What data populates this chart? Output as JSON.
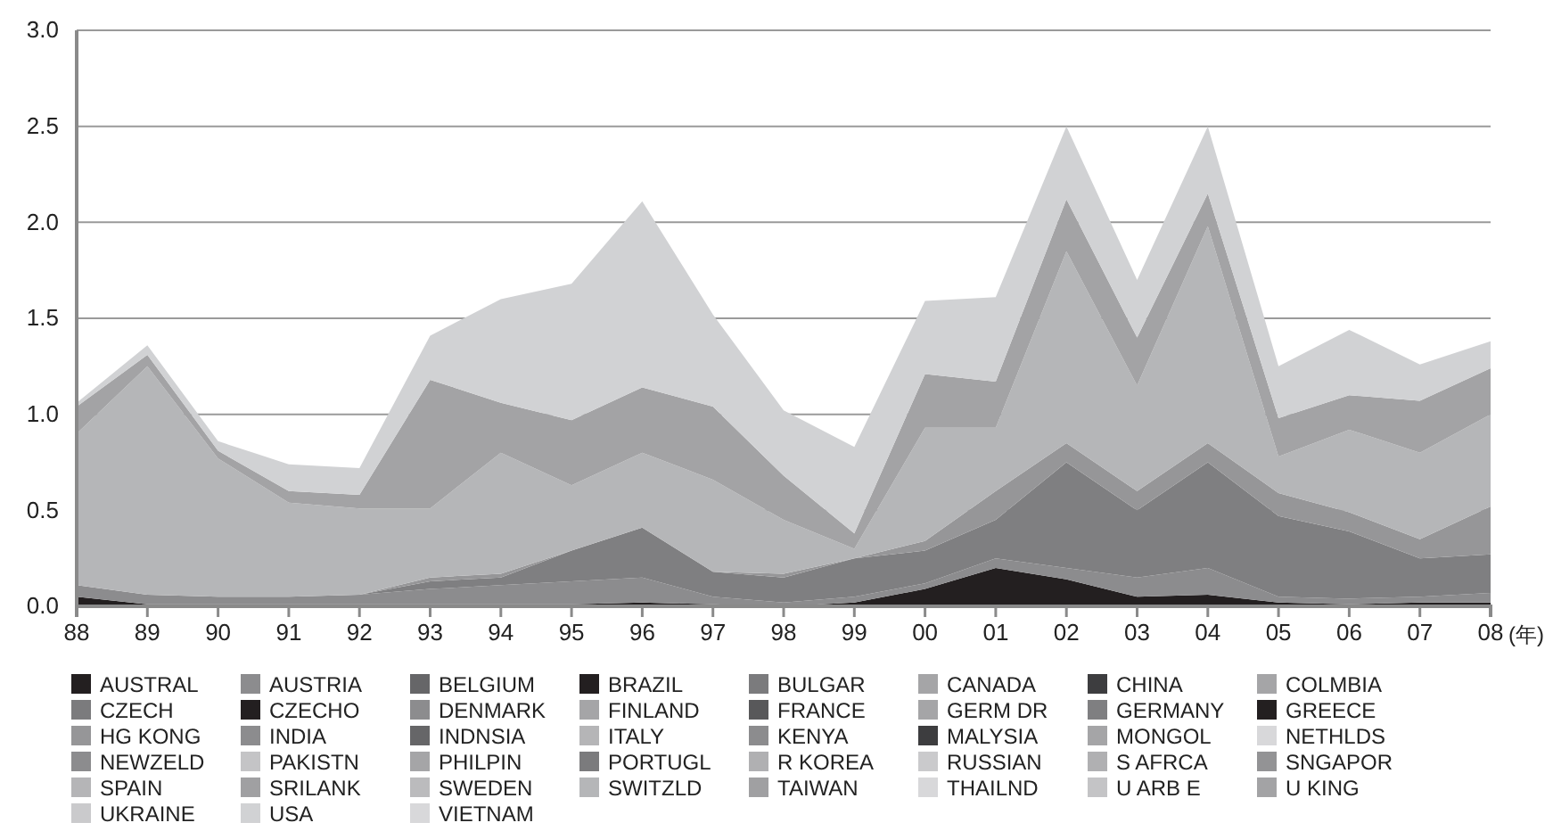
{
  "chart_data": {
    "type": "area",
    "stacked": true,
    "xlabel": "(年)",
    "categories": [
      "88",
      "89",
      "90",
      "91",
      "92",
      "93",
      "94",
      "95",
      "96",
      "97",
      "98",
      "99",
      "00",
      "01",
      "02",
      "03",
      "04",
      "05",
      "06",
      "07",
      "08"
    ],
    "ylim": [
      0,
      3
    ],
    "yticks": [
      {
        "value": 0,
        "label": "0.0"
      },
      {
        "value": 0.5,
        "label": "0.5"
      },
      {
        "value": 1,
        "label": "1.0"
      },
      {
        "value": 1.5,
        "label": "1.5"
      },
      {
        "value": 2,
        "label": "2.0"
      },
      {
        "value": 2.5,
        "label": "2.5"
      },
      {
        "value": 3,
        "label": "3.0"
      }
    ],
    "grid": "y",
    "legend": "bottom",
    "series": [
      {
        "name": "AUSTRAL",
        "color": "#231f20",
        "values": [
          0.05,
          0.01,
          0.01,
          0.01,
          0.01,
          0.01,
          0.01,
          0.01,
          0.02,
          0.01,
          0,
          0.02,
          0.09,
          0.2,
          0.14,
          0.05,
          0.06,
          0.02,
          0.01,
          0.02,
          0.02
        ]
      },
      {
        "name": "AUSTRIA",
        "color": "#8c8c8e",
        "values": [
          0.06,
          0.05,
          0.04,
          0.04,
          0.05,
          0.08,
          0.1,
          0.12,
          0.13,
          0.04,
          0.02,
          0.03,
          0.03,
          0.05,
          0.06,
          0.1,
          0.14,
          0.03,
          0.03,
          0.03,
          0.05
        ]
      },
      {
        "name": "BELGIUM",
        "color": "#666668",
        "values": [
          null,
          null,
          null,
          null,
          null,
          null,
          null,
          null,
          null,
          null,
          null,
          null,
          null,
          null,
          null,
          null,
          null,
          null,
          null,
          null,
          null
        ]
      },
      {
        "name": "BRAZIL",
        "color": "#231f20",
        "values": [
          null,
          null,
          null,
          null,
          null,
          null,
          null,
          null,
          null,
          null,
          null,
          null,
          null,
          null,
          null,
          null,
          null,
          null,
          null,
          null,
          null
        ]
      },
      {
        "name": "BULGAR",
        "color": "#7b7b7d",
        "values": [
          null,
          null,
          null,
          null,
          null,
          null,
          null,
          null,
          null,
          null,
          null,
          null,
          null,
          null,
          null,
          null,
          null,
          null,
          null,
          null,
          null
        ]
      },
      {
        "name": "CANADA",
        "color": "#a5a5a7",
        "values": [
          null,
          null,
          null,
          null,
          null,
          null,
          null,
          null,
          null,
          null,
          null,
          null,
          null,
          null,
          null,
          null,
          null,
          null,
          null,
          null,
          null
        ]
      },
      {
        "name": "CHINA",
        "color": "#3d3d3f",
        "values": [
          null,
          null,
          null,
          null,
          null,
          null,
          null,
          null,
          null,
          null,
          null,
          null,
          null,
          null,
          null,
          null,
          null,
          null,
          null,
          null,
          null
        ]
      },
      {
        "name": "COLMBIA",
        "color": "#a5a5a7",
        "values": [
          null,
          null,
          null,
          null,
          null,
          null,
          null,
          null,
          null,
          null,
          null,
          null,
          null,
          null,
          null,
          null,
          null,
          null,
          null,
          null,
          null
        ]
      },
      {
        "name": "CZECH",
        "color": "#7b7b7d",
        "values": [
          null,
          null,
          null,
          null,
          null,
          null,
          null,
          null,
          null,
          null,
          null,
          null,
          null,
          null,
          null,
          null,
          null,
          null,
          null,
          null,
          null
        ]
      },
      {
        "name": "CZECHO",
        "color": "#231f20",
        "values": [
          null,
          null,
          null,
          null,
          null,
          null,
          null,
          null,
          null,
          null,
          null,
          null,
          null,
          null,
          null,
          null,
          null,
          null,
          null,
          null,
          null
        ]
      },
      {
        "name": "DENMARK",
        "color": "#8c8c8e",
        "values": [
          null,
          null,
          null,
          null,
          null,
          null,
          null,
          null,
          null,
          null,
          null,
          null,
          null,
          null,
          null,
          null,
          null,
          null,
          null,
          null,
          null
        ]
      },
      {
        "name": "FINLAND",
        "color": "#a5a5a7",
        "values": [
          null,
          null,
          null,
          null,
          null,
          null,
          null,
          null,
          null,
          null,
          null,
          null,
          null,
          null,
          null,
          null,
          null,
          null,
          null,
          null,
          null
        ]
      },
      {
        "name": "FRANCE",
        "color": "#58585a",
        "values": [
          null,
          null,
          null,
          null,
          null,
          null,
          null,
          null,
          null,
          null,
          null,
          null,
          null,
          null,
          null,
          null,
          null,
          null,
          null,
          null,
          null
        ]
      },
      {
        "name": "GERM DR",
        "color": "#a5a5a7",
        "values": [
          null,
          null,
          null,
          null,
          null,
          null,
          null,
          null,
          null,
          null,
          null,
          null,
          null,
          null,
          null,
          null,
          null,
          null,
          null,
          null,
          null
        ]
      },
      {
        "name": "GERMANY",
        "color": "#7f7f81",
        "values": [
          0,
          0,
          0,
          0,
          0,
          0.04,
          0.04,
          0.16,
          0.26,
          0.13,
          0.13,
          0.2,
          0.17,
          0.2,
          0.55,
          0.35,
          0.55,
          0.42,
          0.35,
          0.2,
          0.2
        ]
      },
      {
        "name": "GREECE",
        "color": "#231f20",
        "values": [
          null,
          null,
          null,
          null,
          null,
          null,
          null,
          null,
          null,
          null,
          null,
          null,
          null,
          null,
          null,
          null,
          null,
          null,
          null,
          null,
          null
        ]
      },
      {
        "name": "HG KONG",
        "color": "#969698",
        "values": [
          0,
          0,
          0,
          0,
          0,
          0.02,
          0.02,
          0,
          0,
          0,
          0.02,
          0,
          0.05,
          0.15,
          0.1,
          0.1,
          0.1,
          0.12,
          0.1,
          0.1,
          0.25
        ]
      },
      {
        "name": "INDIA",
        "color": "#8c8c8e",
        "values": [
          null,
          null,
          null,
          null,
          null,
          null,
          null,
          null,
          null,
          null,
          null,
          null,
          null,
          null,
          null,
          null,
          null,
          null,
          null,
          null,
          null
        ]
      },
      {
        "name": "INDNSIA",
        "color": "#666668",
        "values": [
          null,
          null,
          null,
          null,
          null,
          null,
          null,
          null,
          null,
          null,
          null,
          null,
          null,
          null,
          null,
          null,
          null,
          null,
          null,
          null,
          null
        ]
      },
      {
        "name": "ITALY",
        "color": "#b5b5b7",
        "values": [
          null,
          null,
          null,
          null,
          null,
          null,
          null,
          null,
          null,
          null,
          null,
          null,
          null,
          null,
          null,
          null,
          null,
          null,
          null,
          null,
          null
        ]
      },
      {
        "name": "KENYA",
        "color": "#8c8c8e",
        "values": [
          null,
          null,
          null,
          null,
          null,
          null,
          null,
          null,
          null,
          null,
          null,
          null,
          null,
          null,
          null,
          null,
          null,
          null,
          null,
          null,
          null
        ]
      },
      {
        "name": "MALYSIA",
        "color": "#3d3d3f",
        "values": [
          null,
          null,
          null,
          null,
          null,
          null,
          null,
          null,
          null,
          null,
          null,
          null,
          null,
          null,
          null,
          null,
          null,
          null,
          null,
          null,
          null
        ]
      },
      {
        "name": "MONGOL",
        "color": "#a5a5a7",
        "values": [
          null,
          null,
          null,
          null,
          null,
          null,
          null,
          null,
          null,
          null,
          null,
          null,
          null,
          null,
          null,
          null,
          null,
          null,
          null,
          null,
          null
        ]
      },
      {
        "name": "NETHLDS",
        "color": "#d8d8da",
        "values": [
          null,
          null,
          null,
          null,
          null,
          null,
          null,
          null,
          null,
          null,
          null,
          null,
          null,
          null,
          null,
          null,
          null,
          null,
          null,
          null,
          null
        ]
      },
      {
        "name": "NEWZELD",
        "color": "#8c8c8e",
        "values": [
          null,
          null,
          null,
          null,
          null,
          null,
          null,
          null,
          null,
          null,
          null,
          null,
          null,
          null,
          null,
          null,
          null,
          null,
          null,
          null,
          null
        ]
      },
      {
        "name": "PAKISTN",
        "color": "#c4c4c6",
        "values": [
          null,
          null,
          null,
          null,
          null,
          null,
          null,
          null,
          null,
          null,
          null,
          null,
          null,
          null,
          null,
          null,
          null,
          null,
          null,
          null,
          null
        ]
      },
      {
        "name": "PHILPIN",
        "color": "#a5a5a7",
        "values": [
          null,
          null,
          null,
          null,
          null,
          null,
          null,
          null,
          null,
          null,
          null,
          null,
          null,
          null,
          null,
          null,
          null,
          null,
          null,
          null,
          null
        ]
      },
      {
        "name": "PORTUGL",
        "color": "#7b7b7d",
        "values": [
          null,
          null,
          null,
          null,
          null,
          null,
          null,
          null,
          null,
          null,
          null,
          null,
          null,
          null,
          null,
          null,
          null,
          null,
          null,
          null,
          null
        ]
      },
      {
        "name": "R KOREA",
        "color": "#b0b0b2",
        "values": [
          null,
          null,
          null,
          null,
          null,
          null,
          null,
          null,
          null,
          null,
          null,
          null,
          null,
          null,
          null,
          null,
          null,
          null,
          null,
          null,
          null
        ]
      },
      {
        "name": "RUSSIAN",
        "color": "#cacacc",
        "values": [
          null,
          null,
          null,
          null,
          null,
          null,
          null,
          null,
          null,
          null,
          null,
          null,
          null,
          null,
          null,
          null,
          null,
          null,
          null,
          null,
          null
        ]
      },
      {
        "name": "S AFRCA",
        "color": "#b0b0b2",
        "values": [
          null,
          null,
          null,
          null,
          null,
          null,
          null,
          null,
          null,
          null,
          null,
          null,
          null,
          null,
          null,
          null,
          null,
          null,
          null,
          null,
          null
        ]
      },
      {
        "name": "SNGAPOR",
        "color": "#939395",
        "values": [
          null,
          null,
          null,
          null,
          null,
          null,
          null,
          null,
          null,
          null,
          null,
          null,
          null,
          null,
          null,
          null,
          null,
          null,
          null,
          null,
          null
        ]
      },
      {
        "name": "SPAIN",
        "color": "#b5b5b7",
        "values": [
          null,
          null,
          null,
          null,
          null,
          null,
          null,
          null,
          null,
          null,
          null,
          null,
          null,
          null,
          null,
          null,
          null,
          null,
          null,
          null,
          null
        ]
      },
      {
        "name": "SRILANK",
        "color": "#a0a0a2",
        "values": [
          null,
          null,
          null,
          null,
          null,
          null,
          null,
          null,
          null,
          null,
          null,
          null,
          null,
          null,
          null,
          null,
          null,
          null,
          null,
          null,
          null
        ]
      },
      {
        "name": "SWEDEN",
        "color": "#bbbbbd",
        "values": [
          null,
          null,
          null,
          null,
          null,
          null,
          null,
          null,
          null,
          null,
          null,
          null,
          null,
          null,
          null,
          null,
          null,
          null,
          null,
          null,
          null
        ]
      },
      {
        "name": "SWITZLD",
        "color": "#b5b6b8",
        "values": [
          0.79,
          1.19,
          0.72,
          0.49,
          0.45,
          0.36,
          0.63,
          0.34,
          0.39,
          0.48,
          0.28,
          0.05,
          0.59,
          0.33,
          1.0,
          0.55,
          1.13,
          0.19,
          0.43,
          0.45,
          0.48
        ]
      },
      {
        "name": "TAIWAN",
        "color": "#a0a0a2",
        "values": [
          null,
          null,
          null,
          null,
          null,
          null,
          null,
          null,
          null,
          null,
          null,
          null,
          null,
          null,
          null,
          null,
          null,
          null,
          null,
          null,
          null
        ]
      },
      {
        "name": "THAILND",
        "color": "#d8d8da",
        "values": [
          null,
          null,
          null,
          null,
          null,
          null,
          null,
          null,
          null,
          null,
          null,
          null,
          null,
          null,
          null,
          null,
          null,
          null,
          null,
          null,
          null
        ]
      },
      {
        "name": "U ARB E",
        "color": "#c4c4c6",
        "values": [
          null,
          null,
          null,
          null,
          null,
          null,
          null,
          null,
          null,
          null,
          null,
          null,
          null,
          null,
          null,
          null,
          null,
          null,
          null,
          null,
          null
        ]
      },
      {
        "name": "U KING",
        "color": "#a3a3a5",
        "values": [
          0.14,
          0.06,
          0.04,
          0.06,
          0.07,
          0.67,
          0.26,
          0.34,
          0.34,
          0.38,
          0.23,
          0.08,
          0.28,
          0.24,
          0.27,
          0.25,
          0.17,
          0.2,
          0.18,
          0.27,
          0.24
        ]
      },
      {
        "name": "UKRAINE",
        "color": "#cacacc",
        "values": [
          null,
          null,
          null,
          null,
          null,
          null,
          null,
          null,
          null,
          null,
          null,
          null,
          null,
          null,
          null,
          null,
          null,
          null,
          null,
          null,
          null
        ]
      },
      {
        "name": "USA",
        "color": "#d1d2d4",
        "values": [
          0.02,
          0.05,
          0.05,
          0.14,
          0.14,
          0.23,
          0.54,
          0.71,
          0.97,
          0.48,
          0.34,
          0.45,
          0.38,
          0.44,
          0.38,
          0.3,
          0.35,
          0.27,
          0.34,
          0.19,
          0.14
        ]
      },
      {
        "name": "VIETNAM",
        "color": "#d8d8da",
        "values": [
          null,
          null,
          null,
          null,
          null,
          null,
          null,
          null,
          null,
          null,
          null,
          null,
          null,
          null,
          null,
          null,
          null,
          null,
          null,
          null,
          null
        ]
      }
    ]
  }
}
